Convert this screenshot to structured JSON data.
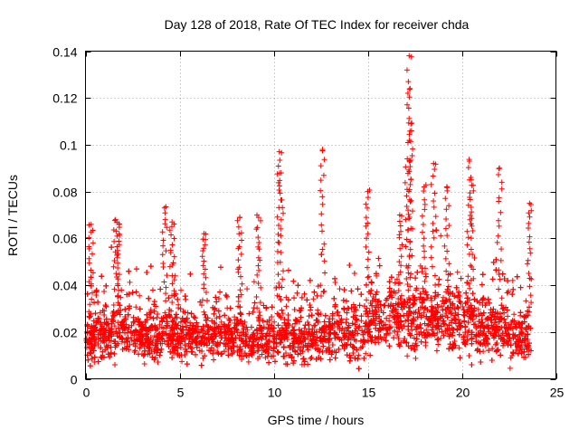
{
  "chart_data": {
    "type": "scatter",
    "title": "Day 128 of 2018, Rate Of TEC Index for receiver chda",
    "xlabel": "GPS time / hours",
    "ylabel": "ROTI / TECUs",
    "xlim": [
      0,
      25
    ],
    "ylim": [
      0,
      0.14
    ],
    "x_ticks": [
      {
        "value": 0,
        "label": "0"
      },
      {
        "value": 5,
        "label": "5"
      },
      {
        "value": 10,
        "label": "10"
      },
      {
        "value": 15,
        "label": "15"
      },
      {
        "value": 20,
        "label": "20"
      },
      {
        "value": 25,
        "label": "25"
      }
    ],
    "y_ticks": [
      {
        "value": 0,
        "label": "0"
      },
      {
        "value": 0.02,
        "label": "0.02"
      },
      {
        "value": 0.04,
        "label": "0.04"
      },
      {
        "value": 0.06,
        "label": "0.06"
      },
      {
        "value": 0.08,
        "label": "0.08"
      },
      {
        "value": 0.1,
        "label": "0.1"
      },
      {
        "value": 0.12,
        "label": "0.12"
      },
      {
        "value": 0.14,
        "label": "0.14"
      }
    ],
    "grid": true,
    "marker": "plus",
    "series": [
      {
        "name": "ROTI",
        "color": "#ff0000",
        "x_range": [
          0,
          23.7
        ],
        "sample_count": 5200,
        "baseline_envelope": [
          [
            0,
            0.016
          ],
          [
            1,
            0.019
          ],
          [
            2,
            0.02
          ],
          [
            3,
            0.018
          ],
          [
            4,
            0.02
          ],
          [
            5,
            0.019
          ],
          [
            6,
            0.018
          ],
          [
            7,
            0.019
          ],
          [
            8,
            0.018
          ],
          [
            9,
            0.018
          ],
          [
            10,
            0.018
          ],
          [
            11,
            0.017
          ],
          [
            12,
            0.018
          ],
          [
            13,
            0.019
          ],
          [
            14,
            0.021
          ],
          [
            15,
            0.023
          ],
          [
            16,
            0.025
          ],
          [
            17,
            0.026
          ],
          [
            18,
            0.025
          ],
          [
            19,
            0.025
          ],
          [
            20,
            0.024
          ],
          [
            21,
            0.022
          ],
          [
            22,
            0.021
          ],
          [
            23,
            0.019
          ],
          [
            23.7,
            0.017
          ]
        ],
        "peaks": [
          {
            "x": 0.3,
            "y": 0.066
          },
          {
            "x": 1.6,
            "y": 0.068
          },
          {
            "x": 1.8,
            "y": 0.066
          },
          {
            "x": 4.2,
            "y": 0.073
          },
          {
            "x": 4.6,
            "y": 0.067
          },
          {
            "x": 6.3,
            "y": 0.062
          },
          {
            "x": 8.2,
            "y": 0.069
          },
          {
            "x": 9.2,
            "y": 0.069
          },
          {
            "x": 10.3,
            "y": 0.097
          },
          {
            "x": 10.4,
            "y": 0.088
          },
          {
            "x": 12.6,
            "y": 0.098
          },
          {
            "x": 15.0,
            "y": 0.08
          },
          {
            "x": 16.7,
            "y": 0.07
          },
          {
            "x": 17.1,
            "y": 0.094
          },
          {
            "x": 17.2,
            "y": 0.138
          },
          {
            "x": 17.25,
            "y": 0.124
          },
          {
            "x": 17.3,
            "y": 0.109
          },
          {
            "x": 18.0,
            "y": 0.082
          },
          {
            "x": 18.5,
            "y": 0.092
          },
          {
            "x": 19.2,
            "y": 0.082
          },
          {
            "x": 20.4,
            "y": 0.093
          },
          {
            "x": 20.5,
            "y": 0.085
          },
          {
            "x": 22.0,
            "y": 0.09
          },
          {
            "x": 23.6,
            "y": 0.075
          }
        ]
      }
    ]
  }
}
